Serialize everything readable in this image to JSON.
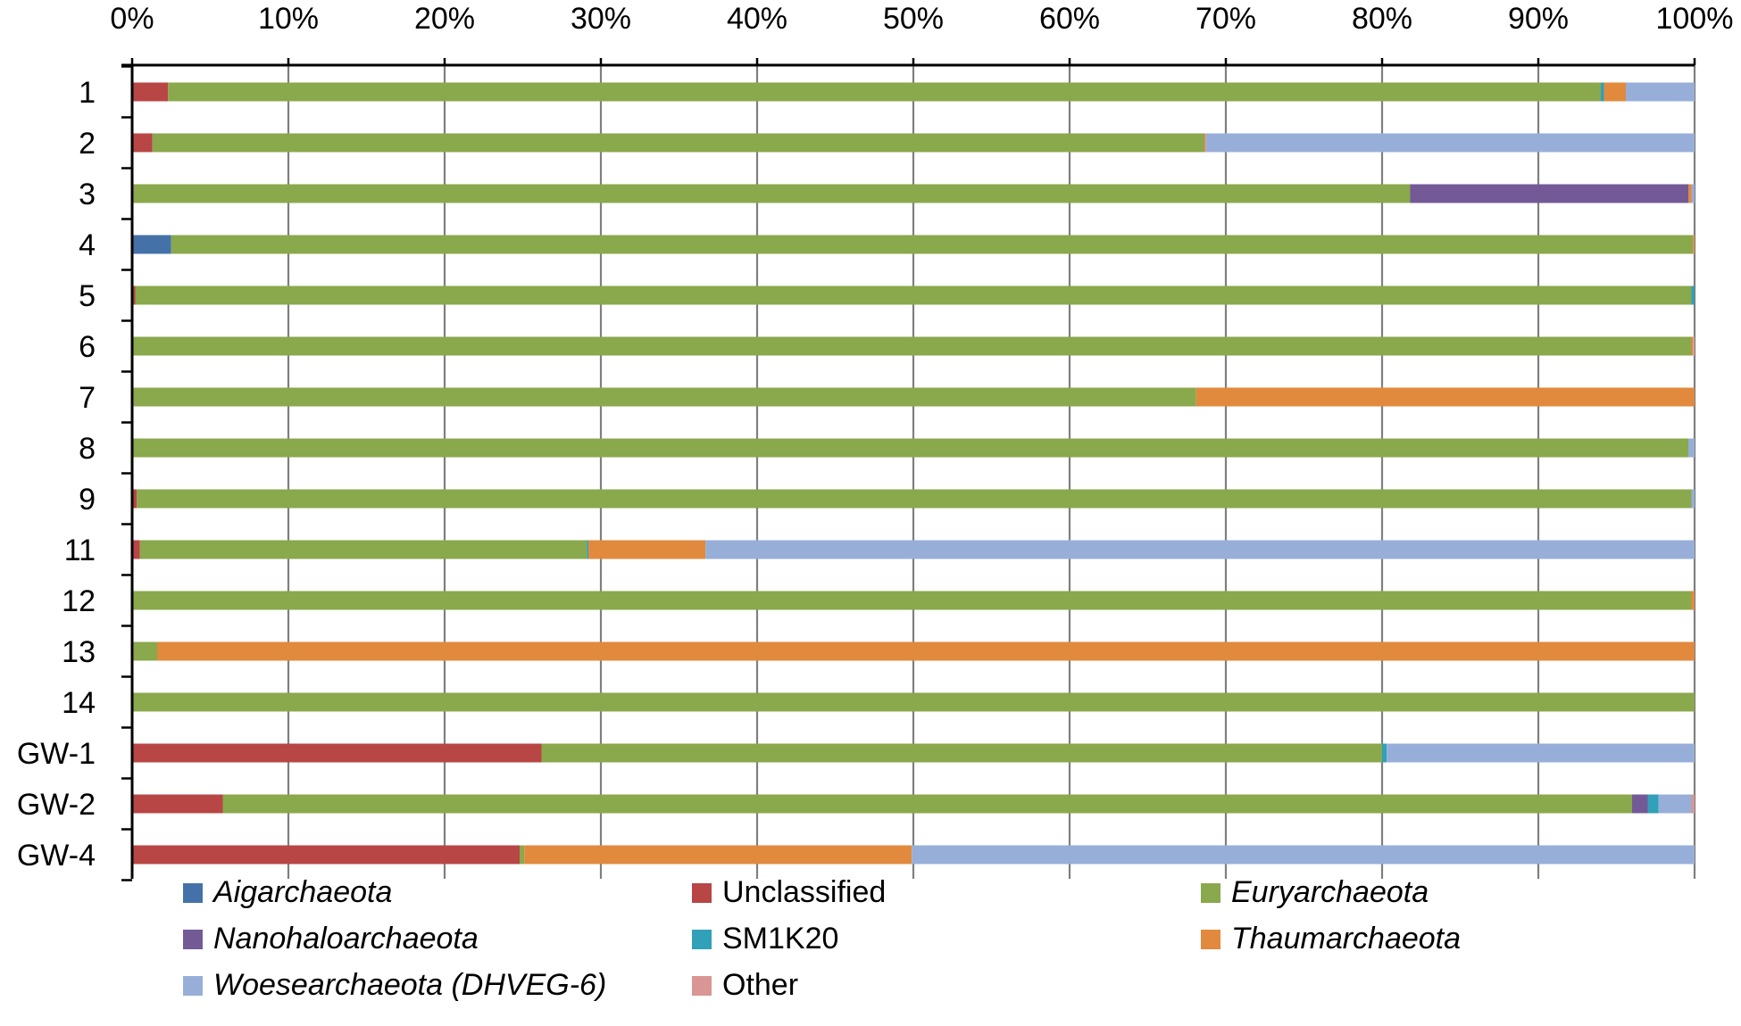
{
  "chart_data": {
    "type": "bar",
    "orientation": "horizontal",
    "stacked": true,
    "percent_axis": true,
    "title": "",
    "xlabel": "",
    "ylabel": "",
    "xlim": [
      0,
      100
    ],
    "x_ticks": [
      "0%",
      "10%",
      "20%",
      "30%",
      "40%",
      "50%",
      "60%",
      "70%",
      "80%",
      "90%",
      "100%"
    ],
    "x_axis_position": "top",
    "grid": true,
    "legend_position": "bottom",
    "categories": [
      "1",
      "2",
      "3",
      "4",
      "5",
      "6",
      "7",
      "8",
      "9",
      "11",
      "12",
      "13",
      "14",
      "GW-1",
      "GW-2",
      "GW-4"
    ],
    "series": [
      {
        "name": "Aigarchaeota",
        "italic": true,
        "color": "#4472A8",
        "values": [
          0,
          0,
          0,
          2.5,
          0,
          0,
          0,
          0,
          0,
          0,
          0,
          0,
          0,
          0,
          0,
          0
        ]
      },
      {
        "name": "Unclassified",
        "italic": false,
        "color": "#B84645",
        "values": [
          2.3,
          1.3,
          0.1,
          0,
          0.2,
          0,
          0.1,
          0,
          0.3,
          0.5,
          0,
          0.1,
          0,
          26.2,
          5.8,
          24.8
        ]
      },
      {
        "name": "Euryarchaeota",
        "italic": true,
        "color": "#8AA84C",
        "values": [
          91.7,
          67.3,
          81.7,
          97.4,
          99.6,
          99.8,
          68.0,
          99.6,
          99.5,
          28.6,
          99.8,
          1.5,
          100,
          53.8,
          90.2,
          0.3
        ]
      },
      {
        "name": "Nanohaloarchaeota",
        "italic": true,
        "color": "#735A96",
        "values": [
          0,
          0,
          17.8,
          0,
          0,
          0,
          0,
          0,
          0,
          0,
          0,
          0,
          0,
          0,
          1.0,
          0
        ]
      },
      {
        "name": "SM1K20",
        "italic": false,
        "color": "#31A0B9",
        "values": [
          0.2,
          0,
          0,
          0,
          0.2,
          0,
          0,
          0,
          0,
          0.1,
          0,
          0,
          0,
          0.3,
          0.7,
          0
        ]
      },
      {
        "name": "Thaumarchaeota",
        "italic": true,
        "color": "#E18A3E",
        "values": [
          1.4,
          0.1,
          0.2,
          0.1,
          0,
          0.1,
          31.9,
          0,
          0,
          7.5,
          0.2,
          98.4,
          0,
          0,
          0,
          24.8
        ]
      },
      {
        "name": "Woesearchaeota (DHVEG-6)",
        "italic": true,
        "color": "#97AFD8",
        "values": [
          4.4,
          31.3,
          0.2,
          0,
          0,
          0,
          0,
          0.4,
          0.2,
          63.3,
          0,
          0,
          0,
          19.7,
          2.1,
          50.1
        ]
      },
      {
        "name": "Other",
        "italic": false,
        "color": "#D99694",
        "values": [
          0,
          0,
          0,
          0,
          0,
          0.1,
          0,
          0,
          0,
          0,
          0,
          0,
          0,
          0,
          0.2,
          0
        ]
      }
    ]
  }
}
